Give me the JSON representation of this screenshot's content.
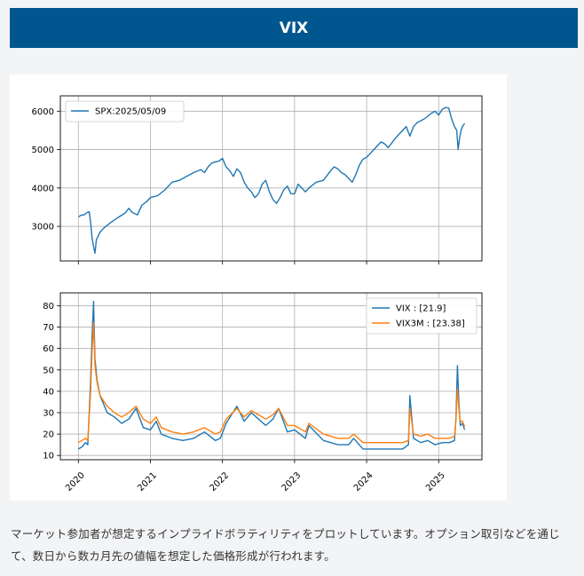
{
  "header": {
    "title": "VIX"
  },
  "description": "マーケット参加者が想定するインプライドボラティリティをプロットしています。オプション取引などを通じて、数日から数カ月先の値幅を想定した価格形成が行われます。",
  "colors": {
    "header_bg": "#00578f",
    "series_blue": "#1f77b4",
    "series_orange": "#ff7f0e"
  },
  "chart_data": [
    {
      "type": "line",
      "grid": true,
      "legend": "top-left",
      "xlim": [
        2019.75,
        2025.6
      ],
      "ylim": [
        2100,
        6400
      ],
      "yticks": [
        3000,
        4000,
        5000,
        6000
      ],
      "xticks": [],
      "series": [
        {
          "name": "SPX:2025/05/09",
          "color": "#1f77b4",
          "x": [
            2020.0,
            2020.04,
            2020.08,
            2020.12,
            2020.15,
            2020.17,
            2020.19,
            2020.21,
            2020.23,
            2020.25,
            2020.3,
            2020.35,
            2020.45,
            2020.55,
            2020.65,
            2020.7,
            2020.75,
            2020.82,
            2020.88,
            2020.95,
            2021.0,
            2021.1,
            2021.2,
            2021.3,
            2021.4,
            2021.5,
            2021.6,
            2021.7,
            2021.75,
            2021.8,
            2021.85,
            2021.9,
            2021.95,
            2022.0,
            2022.05,
            2022.1,
            2022.15,
            2022.2,
            2022.25,
            2022.3,
            2022.35,
            2022.4,
            2022.45,
            2022.5,
            2022.55,
            2022.6,
            2022.65,
            2022.7,
            2022.75,
            2022.8,
            2022.85,
            2022.9,
            2022.95,
            2023.0,
            2023.05,
            2023.1,
            2023.15,
            2023.2,
            2023.3,
            2023.4,
            2023.5,
            2023.55,
            2023.6,
            2023.65,
            2023.7,
            2023.75,
            2023.8,
            2023.85,
            2023.9,
            2023.95,
            2024.0,
            2024.1,
            2024.2,
            2024.25,
            2024.3,
            2024.4,
            2024.5,
            2024.55,
            2024.6,
            2024.65,
            2024.7,
            2024.8,
            2024.9,
            2024.95,
            2025.0,
            2025.05,
            2025.1,
            2025.14,
            2025.18,
            2025.22,
            2025.25,
            2025.27,
            2025.29,
            2025.31,
            2025.33,
            2025.36
          ],
          "y": [
            3250,
            3290,
            3300,
            3360,
            3380,
            3100,
            2700,
            2480,
            2300,
            2650,
            2850,
            2950,
            3100,
            3230,
            3350,
            3470,
            3360,
            3300,
            3550,
            3650,
            3750,
            3800,
            3950,
            4150,
            4200,
            4300,
            4400,
            4480,
            4400,
            4550,
            4650,
            4680,
            4700,
            4770,
            4550,
            4450,
            4300,
            4500,
            4400,
            4150,
            4000,
            3900,
            3750,
            3850,
            4100,
            4200,
            3900,
            3700,
            3600,
            3750,
            3950,
            4050,
            3850,
            3850,
            4100,
            4000,
            3900,
            4000,
            4150,
            4200,
            4450,
            4550,
            4500,
            4400,
            4350,
            4250,
            4150,
            4350,
            4600,
            4750,
            4800,
            5000,
            5200,
            5150,
            5050,
            5300,
            5500,
            5600,
            5350,
            5600,
            5700,
            5800,
            5950,
            6000,
            5900,
            6050,
            6100,
            6080,
            5800,
            5600,
            5500,
            5000,
            5300,
            5500,
            5600,
            5680
          ]
        }
      ]
    },
    {
      "type": "line",
      "grid": true,
      "legend": "top-right",
      "xlim": [
        2019.75,
        2025.6
      ],
      "ylim": [
        8,
        86
      ],
      "yticks": [
        10,
        20,
        30,
        40,
        50,
        60,
        70,
        80
      ],
      "xticks": [
        "2020",
        "2021",
        "2022",
        "2023",
        "2024",
        "2025"
      ],
      "xtick_values": [
        2020,
        2021,
        2022,
        2023,
        2024,
        2025
      ],
      "series": [
        {
          "name": "VIX : [21.9]",
          "color": "#1f77b4",
          "x": [
            2020.0,
            2020.05,
            2020.1,
            2020.13,
            2020.15,
            2020.17,
            2020.19,
            2020.21,
            2020.23,
            2020.26,
            2020.3,
            2020.4,
            2020.5,
            2020.6,
            2020.7,
            2020.8,
            2020.9,
            2021.0,
            2021.08,
            2021.15,
            2021.3,
            2021.45,
            2021.6,
            2021.75,
            2021.9,
            2021.97,
            2022.05,
            2022.2,
            2022.3,
            2022.4,
            2022.5,
            2022.6,
            2022.7,
            2022.78,
            2022.9,
            2023.0,
            2023.15,
            2023.2,
            2023.4,
            2023.6,
            2023.75,
            2023.82,
            2023.95,
            2024.1,
            2024.3,
            2024.5,
            2024.58,
            2024.6,
            2024.65,
            2024.75,
            2024.85,
            2024.95,
            2025.05,
            2025.15,
            2025.22,
            2025.24,
            2025.26,
            2025.28,
            2025.3,
            2025.33,
            2025.36
          ],
          "y": [
            13,
            14,
            16,
            15,
            30,
            45,
            65,
            82,
            55,
            45,
            38,
            30,
            28,
            25,
            27,
            32,
            23,
            22,
            26,
            20,
            18,
            17,
            18,
            21,
            17,
            18,
            25,
            33,
            26,
            30,
            27,
            24,
            27,
            32,
            21,
            22,
            18,
            24,
            17,
            15,
            15,
            18,
            13,
            13,
            13,
            13,
            15,
            38,
            18,
            16,
            17,
            15,
            16,
            16,
            17,
            28,
            52,
            35,
            24,
            25,
            22
          ]
        },
        {
          "name": "VIX3M : [23.38]",
          "color": "#ff7f0e",
          "x": [
            2020.0,
            2020.05,
            2020.1,
            2020.13,
            2020.15,
            2020.17,
            2020.19,
            2020.21,
            2020.23,
            2020.26,
            2020.3,
            2020.4,
            2020.5,
            2020.6,
            2020.7,
            2020.8,
            2020.9,
            2021.0,
            2021.08,
            2021.15,
            2021.3,
            2021.45,
            2021.6,
            2021.75,
            2021.9,
            2021.97,
            2022.05,
            2022.2,
            2022.3,
            2022.4,
            2022.5,
            2022.6,
            2022.7,
            2022.78,
            2022.9,
            2023.0,
            2023.15,
            2023.2,
            2023.4,
            2023.6,
            2023.75,
            2023.82,
            2023.95,
            2024.1,
            2024.3,
            2024.5,
            2024.58,
            2024.6,
            2024.65,
            2024.75,
            2024.85,
            2024.95,
            2025.05,
            2025.15,
            2025.22,
            2025.24,
            2025.26,
            2025.28,
            2025.3,
            2025.33,
            2025.36
          ],
          "y": [
            16,
            17,
            18,
            17,
            28,
            40,
            58,
            72,
            52,
            44,
            38,
            33,
            30,
            28,
            30,
            33,
            27,
            25,
            28,
            23,
            21,
            20,
            21,
            23,
            20,
            21,
            27,
            32,
            28,
            31,
            29,
            27,
            29,
            32,
            24,
            24,
            21,
            25,
            20,
            18,
            18,
            20,
            16,
            16,
            16,
            16,
            17,
            32,
            20,
            19,
            20,
            18,
            18,
            18,
            19,
            27,
            41,
            32,
            26,
            26,
            23.4
          ]
        }
      ]
    }
  ]
}
